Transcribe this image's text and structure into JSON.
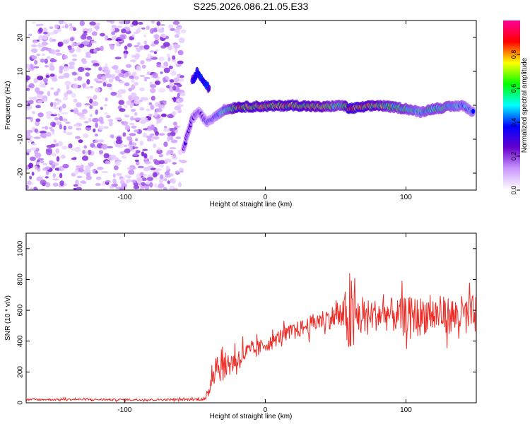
{
  "title": "S225.2026.086.21.05.E33",
  "chart_data": [
    {
      "type": "heatmap",
      "xlabel": "Height of straight line (km)",
      "ylabel": "Frequency (Hz)",
      "xlim": [
        -170,
        150
      ],
      "ylim": [
        -25,
        25
      ],
      "xticks": [
        -100,
        0,
        100
      ],
      "yticks": [
        -20,
        -10,
        0,
        10,
        20
      ],
      "colorbar": {
        "label": "Normalized spectral amplitude",
        "range": [
          0,
          1
        ],
        "ticks": [
          0.0,
          0.2,
          0.4,
          0.6,
          0.8
        ],
        "colors": [
          "#ffffff",
          "#cc99ff",
          "#6600cc",
          "#0000ff",
          "#00ffff",
          "#00ff00",
          "#ffff00",
          "#ff0000",
          "#ff0099"
        ]
      },
      "noise_region": {
        "x": [
          -170,
          -58
        ],
        "freq": [
          -25,
          25
        ],
        "amplitude": 0.2
      },
      "signal_track": {
        "x": [
          -58,
          -55,
          -52,
          -48,
          -45,
          -42,
          -38,
          -35,
          -30,
          -25,
          -20,
          0,
          20,
          40,
          55,
          60,
          70,
          80,
          100,
          110,
          120,
          130,
          140,
          148
        ],
        "freq": [
          -13,
          -8,
          -4,
          -2,
          -3,
          -5,
          -4,
          -3,
          -1.5,
          -1,
          -0.5,
          -0.3,
          0,
          -0.5,
          0,
          -1,
          -0.5,
          0,
          -1,
          -2,
          -1,
          -0.5,
          0,
          -2
        ],
        "amplitude": [
          0.3,
          0.3,
          0.3,
          0.3,
          0.3,
          0.35,
          0.35,
          0.4,
          0.5,
          0.6,
          0.8,
          0.75,
          0.8,
          0.7,
          0.6,
          0.9,
          0.8,
          0.7,
          0.6,
          0.5,
          0.6,
          0.55,
          0.5,
          0.45
        ]
      },
      "branch_track": {
        "x": [
          -52,
          -48,
          -45,
          -42,
          -40
        ],
        "freq": [
          7,
          10,
          8,
          6,
          5
        ]
      }
    },
    {
      "type": "line",
      "xlabel": "Height of straight line (km)",
      "ylabel": "SNR (10 * v/v)",
      "xlim": [
        -170,
        150
      ],
      "ylim": [
        0,
        1100
      ],
      "xticks": [
        -100,
        0,
        100
      ],
      "yticks": [
        0,
        200,
        400,
        600,
        800,
        1000
      ],
      "series": [
        {
          "name": "SNR",
          "color": "#ee2a24",
          "x": [
            -170,
            -140,
            -110,
            -80,
            -50,
            -42,
            -40,
            -38,
            -35,
            -30,
            -25,
            -20,
            -15,
            -10,
            -5,
            0,
            5,
            10,
            15,
            20,
            25,
            30,
            35,
            40,
            45,
            50,
            55,
            58,
            60,
            62,
            64,
            66,
            68,
            70,
            75,
            80,
            85,
            90,
            95,
            100,
            105,
            110,
            115,
            120,
            125,
            130,
            135,
            140,
            145,
            150
          ],
          "mean": [
            20,
            22,
            20,
            20,
            22,
            25,
            80,
            200,
            250,
            230,
            260,
            280,
            320,
            330,
            350,
            380,
            390,
            430,
            450,
            470,
            480,
            500,
            520,
            540,
            550,
            560,
            560,
            570,
            560,
            500,
            550,
            560,
            550,
            560,
            570,
            570,
            580,
            570,
            560,
            570,
            570,
            560,
            580,
            570,
            570,
            570,
            560,
            570,
            560,
            580
          ],
          "noise": [
            8,
            8,
            8,
            8,
            10,
            15,
            60,
            130,
            150,
            110,
            110,
            100,
            90,
            80,
            70,
            60,
            60,
            60,
            60,
            60,
            70,
            70,
            80,
            80,
            90,
            100,
            130,
            250,
            420,
            320,
            220,
            180,
            160,
            140,
            130,
            130,
            140,
            140,
            140,
            150,
            150,
            160,
            160,
            160,
            150,
            150,
            160,
            160,
            160,
            160
          ]
        }
      ]
    }
  ]
}
